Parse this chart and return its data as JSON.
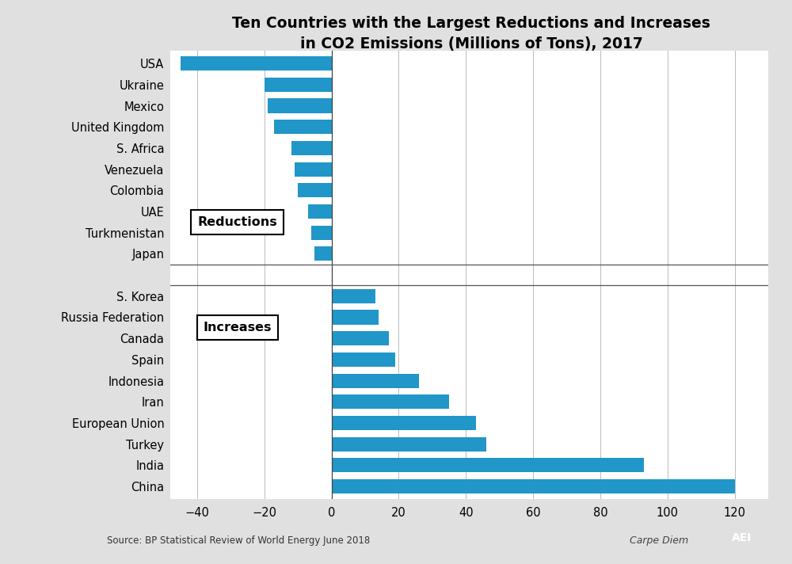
{
  "title": "Ten Countries with the Largest Reductions and Increases\nin CO2 Emissions (Millions of Tons), 2017",
  "source": "Source: BP Statistical Review of World Energy June 2018",
  "bar_color": "#2196C8",
  "background_color": "#E0E0E0",
  "plot_background_color": "#FFFFFF",
  "reductions_countries": [
    "USA",
    "Ukraine",
    "Mexico",
    "United Kingdom",
    "S. Africa",
    "Venezuela",
    "Colombia",
    "UAE",
    "Turkmenistan",
    "Japan"
  ],
  "reductions_values": [
    -45,
    -20,
    -19,
    -17,
    -12,
    -11,
    -10,
    -7,
    -6,
    -5
  ],
  "increases_countries": [
    "S. Korea",
    "Russia Federation",
    "Canada",
    "Spain",
    "Indonesia",
    "Iran",
    "European Union",
    "Turkey",
    "India",
    "China"
  ],
  "increases_values": [
    13,
    14,
    17,
    19,
    26,
    35,
    43,
    46,
    93,
    120
  ],
  "xticks": [
    -40,
    -20,
    0,
    20,
    40,
    60,
    80,
    100,
    120
  ],
  "xlim": [
    -48,
    130
  ]
}
